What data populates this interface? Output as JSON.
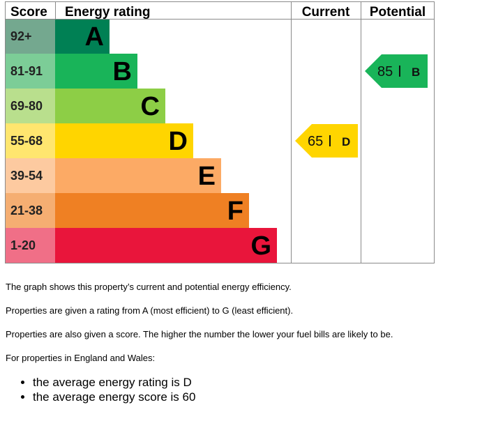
{
  "chart_data": {
    "type": "bar",
    "headers": {
      "score": "Score",
      "rating": "Energy rating",
      "current": "Current",
      "potential": "Potential"
    },
    "bands": [
      {
        "letter": "A",
        "range": "92+",
        "color": "#008054",
        "score_bg": "#74a88f"
      },
      {
        "letter": "B",
        "range": "81-91",
        "color": "#19b459",
        "score_bg": "#7ccd97"
      },
      {
        "letter": "C",
        "range": "69-80",
        "color": "#8dce46",
        "score_bg": "#b9df8d"
      },
      {
        "letter": "D",
        "range": "55-68",
        "color": "#ffd500",
        "score_bg": "#ffe66f"
      },
      {
        "letter": "E",
        "range": "39-54",
        "color": "#fcaa65",
        "score_bg": "#fdcaa0"
      },
      {
        "letter": "F",
        "range": "21-38",
        "color": "#ef8023",
        "score_bg": "#f5ae72"
      },
      {
        "letter": "G",
        "range": "1-20",
        "color": "#e9153b",
        "score_bg": "#f06f87"
      }
    ],
    "current": {
      "score": "65",
      "letter": "D",
      "color": "#ffd500"
    },
    "potential": {
      "score": "85",
      "letter": "B",
      "color": "#19b459"
    }
  },
  "notes": {
    "line1": "The graph shows this property’s current and potential energy efficiency.",
    "line2": "Properties are given a rating from A (most efficient) to G (least efficient).",
    "line3": "Properties are also given a score. The higher the number the lower your fuel bills are likely to be.",
    "line4": "For properties in England and Wales:",
    "bullets": [
      "the average energy rating is D",
      "the average energy score is 60"
    ]
  }
}
